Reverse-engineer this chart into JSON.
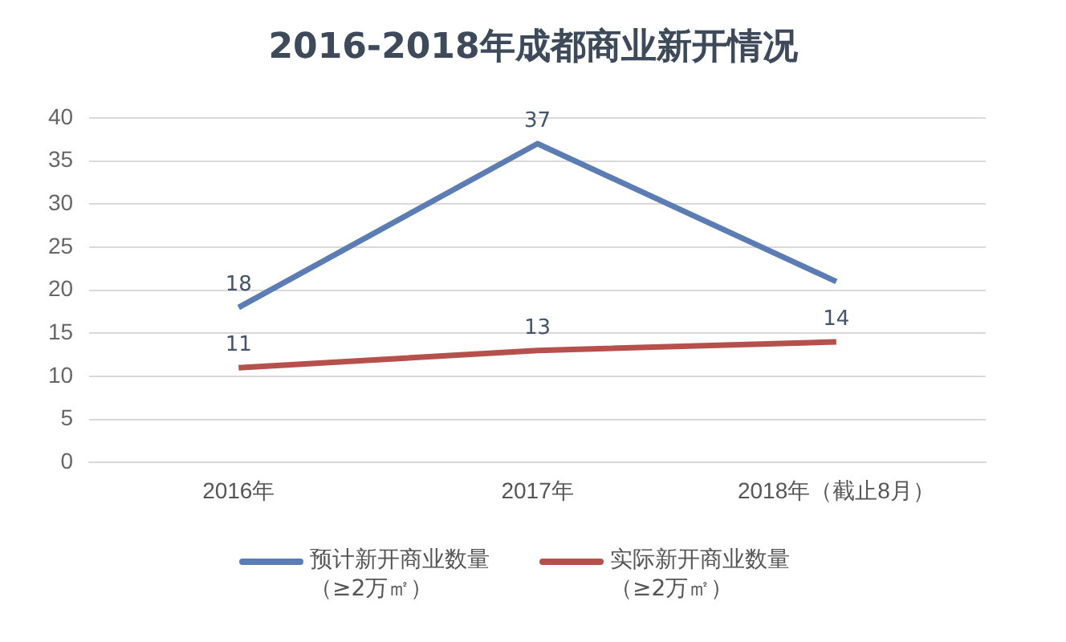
{
  "chart_data": {
    "type": "line",
    "title": "2016-2018年成都商业新开情况",
    "categories": [
      "2016年",
      "2017年",
      "2018年（截止8月）"
    ],
    "series": [
      {
        "name": "预计新开商业数量（≥2万㎡）",
        "color": "#5b7db3",
        "values": [
          18,
          37,
          21
        ],
        "value_labels": [
          "18",
          "37",
          null
        ]
      },
      {
        "name": "实际新开商业数量（≥2万㎡）",
        "color": "#b5504c",
        "values": [
          11,
          13,
          14
        ],
        "value_labels": [
          "11",
          "13",
          "14"
        ]
      }
    ],
    "ylim": [
      0,
      40
    ],
    "yticks": [
      0,
      5,
      10,
      15,
      20,
      25,
      30,
      35,
      40
    ],
    "grid": "y",
    "legend": "bottom",
    "marker": "none",
    "line_style": "solid"
  }
}
